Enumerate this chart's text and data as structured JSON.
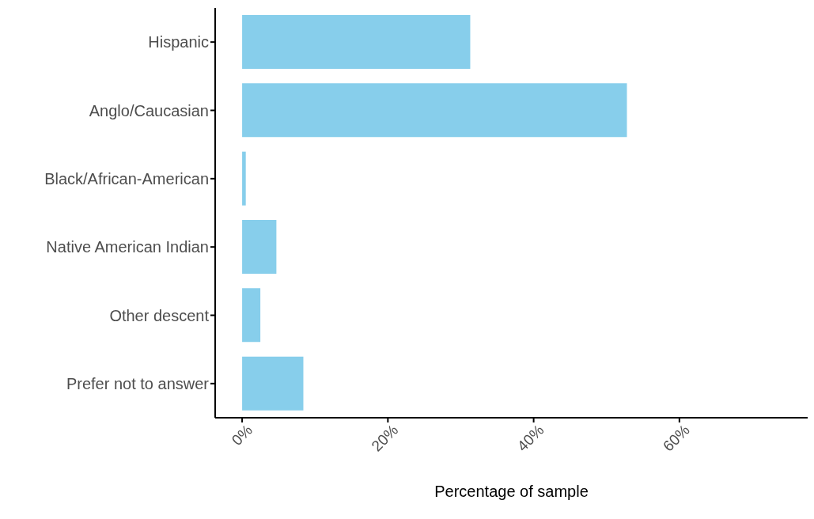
{
  "chart_data": {
    "type": "bar",
    "orientation": "horizontal",
    "xlabel": "Percentage of sample",
    "categories": [
      "Hispanic",
      "Anglo/Caucasian",
      "Black/African-American",
      "Native American Indian",
      "Other descent",
      "Prefer not to answer"
    ],
    "values": [
      31.3,
      52.8,
      0.5,
      4.7,
      2.5,
      8.4
    ],
    "color": "#87ceeb",
    "xlim": [
      -3.7,
      77.6
    ],
    "xticks": [
      {
        "value": 0,
        "label": "0%"
      },
      {
        "value": 20,
        "label": "20%"
      },
      {
        "value": 40,
        "label": "40%"
      },
      {
        "value": 60,
        "label": "60%"
      }
    ],
    "grid": false,
    "legend": false
  }
}
